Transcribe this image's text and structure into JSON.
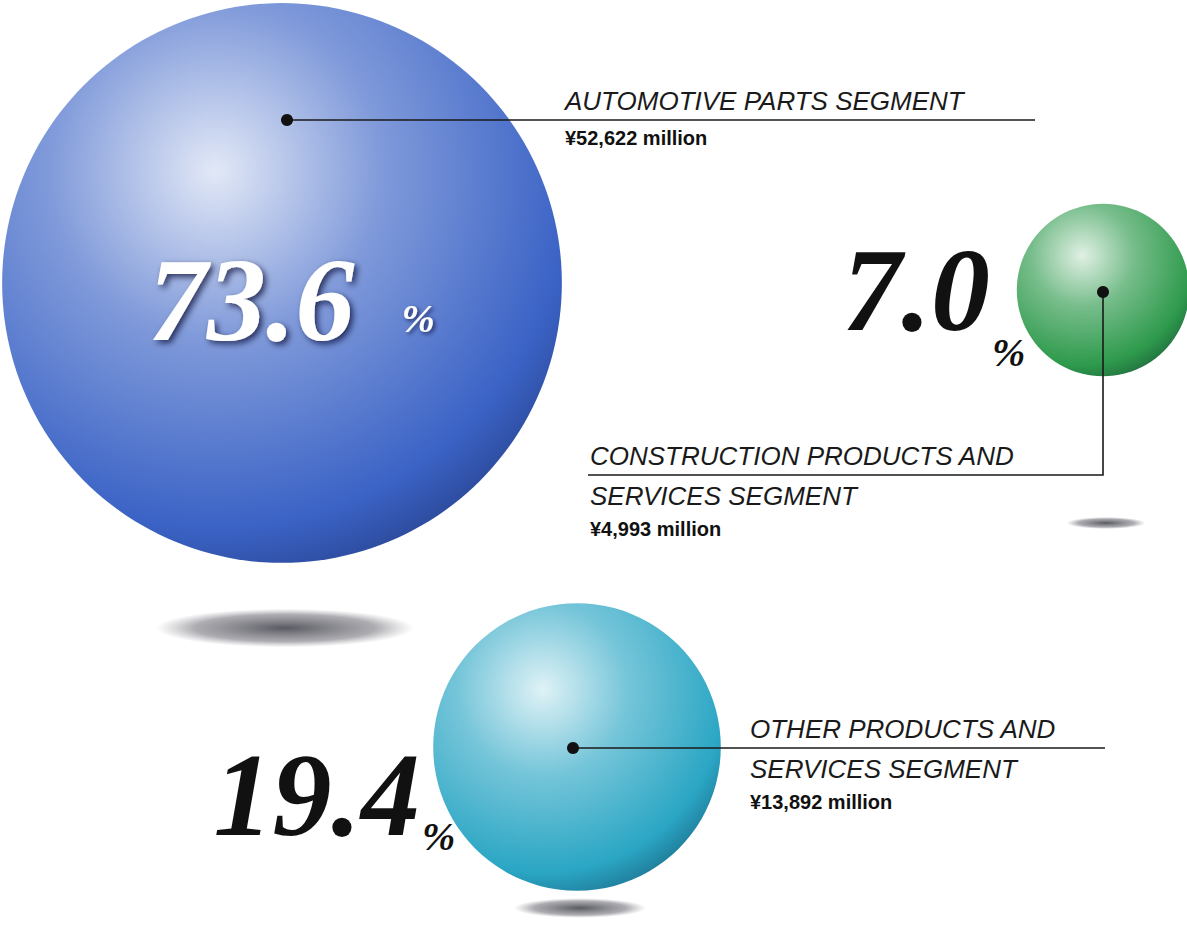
{
  "chart_data": {
    "type": "bubble",
    "categories": [
      "AUTOMOTIVE PARTS SEGMENT",
      "CONSTRUCTION PRODUCTS AND SERVICES SEGMENT",
      "OTHER PRODUCTS AND SERVICES SEGMENT"
    ],
    "values": [
      73.6,
      7.0,
      19.4
    ],
    "value_labels": [
      "73.6%",
      "7.0%",
      "19.4%"
    ],
    "amounts": [
      52622,
      4993,
      13892
    ],
    "amount_labels": [
      "¥52,622 million",
      "¥4,993 million",
      "¥13,892 million"
    ],
    "colors": [
      "#3b63c6",
      "#2e9a4c",
      "#2aa6c4"
    ],
    "data_labels": true
  }
}
